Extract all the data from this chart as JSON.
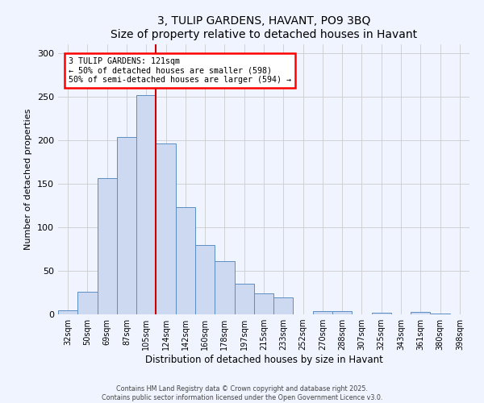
{
  "title": "3, TULIP GARDENS, HAVANT, PO9 3BQ",
  "subtitle": "Size of property relative to detached houses in Havant",
  "xlabel": "Distribution of detached houses by size in Havant",
  "ylabel": "Number of detached properties",
  "bar_labels": [
    "32sqm",
    "50sqm",
    "69sqm",
    "87sqm",
    "105sqm",
    "124sqm",
    "142sqm",
    "160sqm",
    "178sqm",
    "197sqm",
    "215sqm",
    "233sqm",
    "252sqm",
    "270sqm",
    "288sqm",
    "307sqm",
    "325sqm",
    "343sqm",
    "361sqm",
    "380sqm",
    "398sqm"
  ],
  "bar_values": [
    5,
    26,
    156,
    204,
    252,
    196,
    123,
    80,
    61,
    35,
    24,
    19,
    0,
    4,
    4,
    0,
    2,
    0,
    3,
    1,
    0
  ],
  "bar_color": "#ccd9f0",
  "bar_edge_color": "#5b8ec4",
  "vline_color": "#cc0000",
  "vline_x": 4.5,
  "annotation_title": "3 TULIP GARDENS: 121sqm",
  "annotation_line1": "← 50% of detached houses are smaller (598)",
  "annotation_line2": "50% of semi-detached houses are larger (594) →",
  "annotation_box_color": "white",
  "annotation_box_edge_color": "red",
  "ylim": [
    0,
    310
  ],
  "yticks": [
    0,
    50,
    100,
    150,
    200,
    250,
    300
  ],
  "footer1": "Contains HM Land Registry data © Crown copyright and database right 2025.",
  "footer2": "Contains public sector information licensed under the Open Government Licence v3.0.",
  "background_color": "#f0f4ff"
}
